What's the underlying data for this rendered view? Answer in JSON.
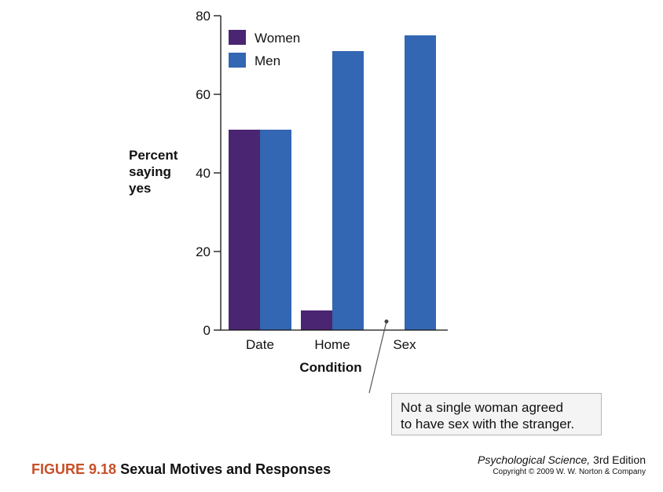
{
  "chart_data": {
    "type": "bar",
    "categories": [
      "Date",
      "Home",
      "Sex"
    ],
    "series": [
      {
        "name": "Women",
        "values": [
          51,
          5,
          0
        ],
        "color": "#4a2572"
      },
      {
        "name": "Men",
        "values": [
          51,
          71,
          75
        ],
        "color": "#3366b3"
      }
    ],
    "ylim": [
      0,
      80
    ],
    "yticks": [
      "0",
      "20",
      "40",
      "60",
      "80"
    ],
    "xlabel": "Condition",
    "ylabel_lines": [
      "Percent",
      "saying",
      "yes"
    ],
    "legend_position": "top-left",
    "grid": false,
    "annotation": {
      "lines": [
        "Not a single woman agreed",
        "to have sex with the stranger."
      ],
      "points_to": "Sex / Women"
    }
  },
  "caption": {
    "figure_number": "FIGURE 9.18",
    "figure_title": "Sexual Motives and Responses"
  },
  "credit": {
    "book_title": "Psychological Science,",
    "edition": " 3rd Edition",
    "copyright": "Copyright © 2009 W. W. Norton & Company"
  },
  "colors": {
    "women": "#4a2572",
    "men": "#3366b3",
    "accent": "#c84f28"
  }
}
